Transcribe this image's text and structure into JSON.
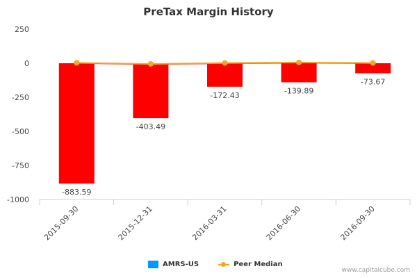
{
  "chart_data": {
    "type": "bar",
    "title": "PreTax Margin History",
    "categories": [
      "2015-09-30",
      "2015-12-31",
      "2016-03-31",
      "2016-06-30",
      "2016-09-30"
    ],
    "series": [
      {
        "name": "AMRS-US",
        "type": "bar",
        "values": [
          -883.59,
          -403.49,
          -172.43,
          -139.89,
          -73.67
        ],
        "data_labels": [
          "-883.59",
          "-403.49",
          "-172.43",
          "-139.89",
          "-73.67"
        ]
      },
      {
        "name": "Peer Median",
        "type": "line",
        "values": [
          3,
          -5,
          2,
          6,
          2
        ]
      }
    ],
    "yticks": [
      "250",
      "0",
      "-250",
      "-500",
      "-750",
      "-1000"
    ],
    "ylim": [
      -1000,
      250
    ],
    "xlabel": "",
    "ylabel": "",
    "grid": false,
    "legend_position": "bottom-center"
  },
  "colors": {
    "bar_fill": "#ff0000",
    "legend_bar_swatch": "#0099ff",
    "peer_line": "#f5a623",
    "amrs_line": "#e02020",
    "axis": "#c0d0e0",
    "tick_text": "#444444"
  },
  "credit": "www.capitalcube.com"
}
